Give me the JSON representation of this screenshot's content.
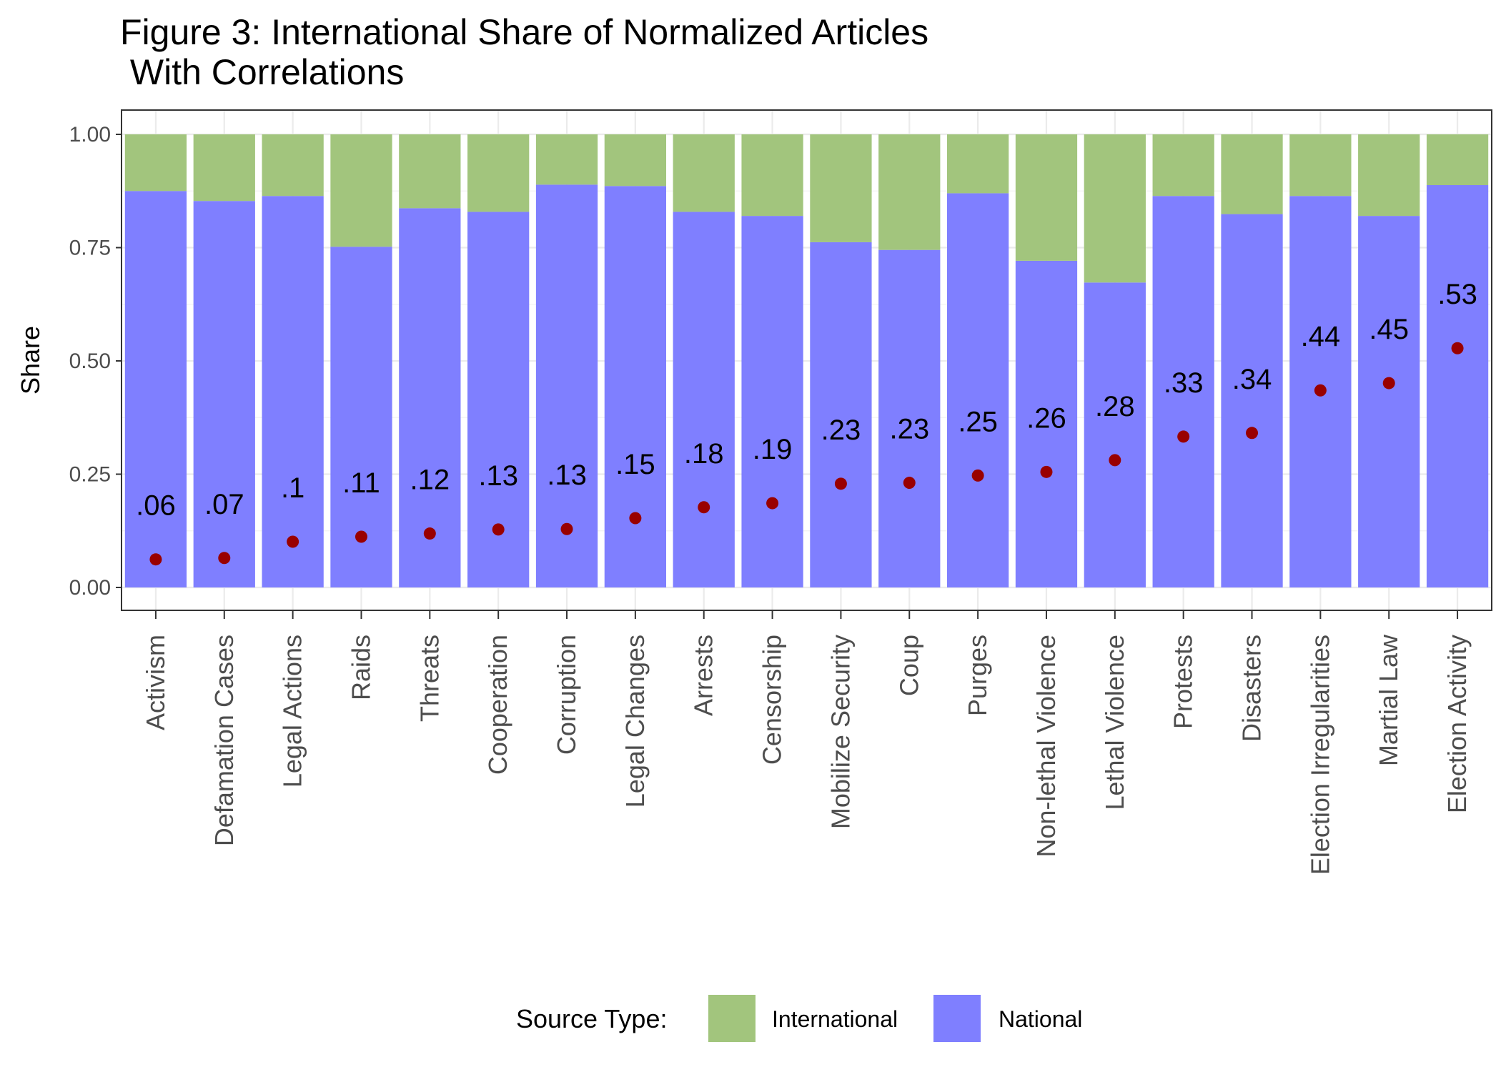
{
  "chart_data": {
    "type": "bar",
    "stacked": true,
    "title_line1": "Figure 3: International Share of Normalized Articles",
    "title_line2": " With Correlations",
    "xlabel": "",
    "ylabel": "Share",
    "ylim": [
      0,
      1
    ],
    "yticks": [
      "0.00",
      "0.25",
      "0.50",
      "0.75",
      "1.00"
    ],
    "grid": true,
    "legend_position": "bottom",
    "legend_title": "Source Type:",
    "categories": [
      "Activism",
      "Defamation Cases",
      "Legal Actions",
      "Raids",
      "Threats",
      "Cooperation",
      "Corruption",
      "Legal Changes",
      "Arrests",
      "Censorship",
      "Mobilize Security",
      "Coup",
      "Purges",
      "Non-lethal Violence",
      "Lethal Violence",
      "Protests",
      "Disasters",
      "Election Irregularities",
      "Martial Law",
      "Election Activity"
    ],
    "series": [
      {
        "name": "National",
        "color": "#7f7fff",
        "values": [
          0.875,
          0.853,
          0.864,
          0.752,
          0.837,
          0.829,
          0.889,
          0.886,
          0.829,
          0.82,
          0.762,
          0.745,
          0.87,
          0.721,
          0.673,
          0.864,
          0.824,
          0.864,
          0.82,
          0.888
        ]
      },
      {
        "name": "International",
        "color": "#a2c57d",
        "values": [
          0.125,
          0.147,
          0.136,
          0.248,
          0.163,
          0.171,
          0.111,
          0.114,
          0.171,
          0.18,
          0.238,
          0.255,
          0.13,
          0.279,
          0.327,
          0.136,
          0.176,
          0.136,
          0.18,
          0.112
        ]
      }
    ],
    "correlations": {
      "color": "#990000",
      "values": [
        0.062,
        0.065,
        0.101,
        0.112,
        0.119,
        0.128,
        0.129,
        0.153,
        0.177,
        0.186,
        0.229,
        0.231,
        0.247,
        0.255,
        0.281,
        0.333,
        0.341,
        0.435,
        0.451,
        0.528
      ],
      "labels": [
        ".06",
        ".07",
        ".1",
        ".11",
        ".12",
        ".13",
        ".13",
        ".15",
        ".18",
        ".19",
        ".23",
        ".23",
        ".25",
        ".26",
        ".28",
        ".33",
        ".34",
        ".44",
        ".45",
        ".53"
      ]
    }
  }
}
